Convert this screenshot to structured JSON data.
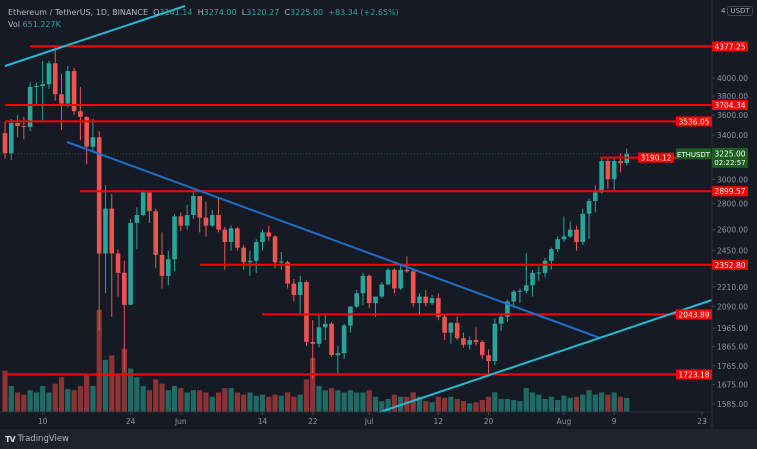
{
  "header": {
    "symbol_title": "Ethereum / TetherUS, 1D, BINANCE",
    "open_label": "O",
    "open": "3141.14",
    "high_label": "H",
    "high": "3274.00",
    "low_label": "L",
    "low": "3120.27",
    "close_label": "C",
    "close": "3225.00",
    "change": "+83.34 (+2.65%)",
    "volume_label": "Vol",
    "volume": "651.227K"
  },
  "price_axis": {
    "currency": "USDT",
    "top_label": "4",
    "scale": "log",
    "ticks": [
      "4000.00",
      "3800.00",
      "3600.00",
      "3400.00",
      "3000.00",
      "2800.00",
      "2600.00",
      "2450.00",
      "2210.00",
      "2090.00",
      "1965.00",
      "1865.00",
      "1765.00",
      "1675.00",
      "1585.00"
    ]
  },
  "time_axis": {
    "ticks": [
      {
        "label": "10",
        "date": "2021-05-10"
      },
      {
        "label": "24",
        "date": "2021-05-24"
      },
      {
        "label": "Jun",
        "date": "2021-06-01"
      },
      {
        "label": "14",
        "date": "2021-06-14"
      },
      {
        "label": "22",
        "date": "2021-06-22"
      },
      {
        "label": "Jul",
        "date": "2021-07-01"
      },
      {
        "label": "12",
        "date": "2021-07-12"
      },
      {
        "label": "20",
        "date": "2021-07-20"
      },
      {
        "label": "Aug",
        "date": "2021-08-01"
      },
      {
        "label": "9",
        "date": "2021-08-09"
      },
      {
        "label": "23",
        "date": "2021-08-23"
      }
    ]
  },
  "levels": [
    {
      "label": "4377.25",
      "price": 4377.25
    },
    {
      "label": "3704.34",
      "price": 3704.34
    },
    {
      "label": "3536.05",
      "price": 3536.05
    },
    {
      "label": "3190.12",
      "price": 3190.12
    },
    {
      "label": "2899.57",
      "price": 2899.57
    },
    {
      "label": "2352.80",
      "price": 2352.8
    },
    {
      "label": "2043.89",
      "price": 2043.89
    },
    {
      "label": "1723.18",
      "price": 1723.18
    }
  ],
  "last_price": {
    "symbol": "ETHUSDT",
    "price": "3225.00",
    "countdown": "02:22:57",
    "value": 3225.0
  },
  "colors": {
    "background": "#161a25",
    "up": "#26a69a",
    "down": "#ef5350",
    "volume_up": "#1e6b66",
    "volume_down": "#8a3436",
    "level": "#ff0000",
    "trend_up": "#1fbcd2",
    "trend_down": "#1e6fc8",
    "last_price": "#1b5e20"
  },
  "branding": {
    "name": "TradingView"
  },
  "chart_data": {
    "type": "candlestick",
    "yscale": "log",
    "columns": [
      "date",
      "open",
      "high",
      "low",
      "close",
      "volume_k"
    ],
    "candles": [
      [
        "2021-05-04",
        3420,
        3530,
        3180,
        3230,
        1900
      ],
      [
        "2021-05-05",
        3230,
        3560,
        3170,
        3520,
        1200
      ],
      [
        "2021-05-06",
        3520,
        3600,
        3380,
        3490,
        900
      ],
      [
        "2021-05-07",
        3490,
        3580,
        3360,
        3480,
        800
      ],
      [
        "2021-05-08",
        3480,
        3950,
        3440,
        3900,
        1000
      ],
      [
        "2021-05-09",
        3900,
        3950,
        3700,
        3910,
        900
      ],
      [
        "2021-05-10",
        3910,
        4200,
        3530,
        3930,
        1200
      ],
      [
        "2021-05-11",
        3930,
        4200,
        3880,
        4170,
        900
      ],
      [
        "2021-05-12",
        4170,
        4370,
        3750,
        3820,
        1300
      ],
      [
        "2021-05-13",
        3820,
        4050,
        3450,
        3720,
        1600
      ],
      [
        "2021-05-14",
        3720,
        4140,
        3680,
        4080,
        1050
      ],
      [
        "2021-05-15",
        4080,
        4120,
        3600,
        3640,
        1000
      ],
      [
        "2021-05-16",
        3640,
        3900,
        3350,
        3580,
        1200
      ],
      [
        "2021-05-17",
        3580,
        3590,
        3130,
        3290,
        1700
      ],
      [
        "2021-05-18",
        3290,
        3560,
        3250,
        3380,
        1200
      ],
      [
        "2021-05-19",
        3380,
        3440,
        1950,
        2430,
        4700
      ],
      [
        "2021-05-20",
        2430,
        2950,
        2170,
        2760,
        2400
      ],
      [
        "2021-05-21",
        2760,
        2880,
        2030,
        2430,
        2600
      ],
      [
        "2021-05-22",
        2430,
        2460,
        2150,
        2300,
        1700
      ],
      [
        "2021-05-23",
        2300,
        2380,
        1740,
        2100,
        2900
      ],
      [
        "2021-05-24",
        2100,
        2680,
        2100,
        2650,
        2000
      ],
      [
        "2021-05-25",
        2650,
        2770,
        2460,
        2710,
        1600
      ],
      [
        "2021-05-26",
        2710,
        2910,
        2700,
        2890,
        1200
      ],
      [
        "2021-05-27",
        2890,
        2890,
        2650,
        2740,
        1000
      ],
      [
        "2021-05-28",
        2740,
        2760,
        2330,
        2420,
        1500
      ],
      [
        "2021-05-29",
        2420,
        2580,
        2200,
        2280,
        1300
      ],
      [
        "2021-05-30",
        2280,
        2450,
        2220,
        2390,
        1000
      ],
      [
        "2021-05-31",
        2390,
        2720,
        2310,
        2700,
        1200
      ],
      [
        "2021-06-01",
        2700,
        2730,
        2590,
        2630,
        1100
      ],
      [
        "2021-06-02",
        2630,
        2790,
        2600,
        2710,
        900
      ],
      [
        "2021-06-03",
        2710,
        2890,
        2680,
        2860,
        1000
      ],
      [
        "2021-06-04",
        2860,
        2860,
        2580,
        2690,
        1000
      ],
      [
        "2021-06-05",
        2690,
        2815,
        2550,
        2630,
        900
      ],
      [
        "2021-06-06",
        2630,
        2750,
        2620,
        2710,
        700
      ],
      [
        "2021-06-07",
        2710,
        2840,
        2580,
        2600,
        900
      ],
      [
        "2021-06-08",
        2600,
        2620,
        2320,
        2510,
        1100
      ],
      [
        "2021-06-09",
        2510,
        2630,
        2450,
        2610,
        1100
      ],
      [
        "2021-06-10",
        2610,
        2620,
        2450,
        2470,
        900
      ],
      [
        "2021-06-11",
        2470,
        2490,
        2320,
        2370,
        800
      ],
      [
        "2021-06-12",
        2370,
        2450,
        2280,
        2380,
        900
      ],
      [
        "2021-06-13",
        2380,
        2530,
        2300,
        2510,
        750
      ],
      [
        "2021-06-14",
        2510,
        2600,
        2450,
        2580,
        800
      ],
      [
        "2021-06-15",
        2580,
        2630,
        2520,
        2550,
        700
      ],
      [
        "2021-06-16",
        2550,
        2560,
        2330,
        2370,
        800
      ],
      [
        "2021-06-17",
        2370,
        2440,
        2320,
        2375,
        750
      ],
      [
        "2021-06-18",
        2370,
        2380,
        2200,
        2230,
        900
      ],
      [
        "2021-06-19",
        2230,
        2260,
        2120,
        2160,
        700
      ],
      [
        "2021-06-20",
        2160,
        2280,
        2040,
        2240,
        800
      ],
      [
        "2021-06-21",
        2240,
        2250,
        1870,
        1890,
        1500
      ],
      [
        "2021-06-22",
        1890,
        2010,
        1700,
        1880,
        2500
      ],
      [
        "2021-06-23",
        1880,
        2040,
        1860,
        1970,
        1200
      ],
      [
        "2021-06-24",
        1970,
        2050,
        1900,
        1990,
        1000
      ],
      [
        "2021-06-25",
        1990,
        2000,
        1810,
        1820,
        1100
      ],
      [
        "2021-06-26",
        1820,
        1870,
        1720,
        1830,
        1000
      ],
      [
        "2021-06-27",
        1830,
        1990,
        1800,
        1980,
        900
      ],
      [
        "2021-06-28",
        1980,
        2090,
        1940,
        2090,
        1000
      ],
      [
        "2021-06-29",
        2090,
        2190,
        2080,
        2170,
        900
      ],
      [
        "2021-06-30",
        2170,
        2300,
        2100,
        2280,
        900
      ],
      [
        "2021-07-01",
        2280,
        2290,
        2080,
        2110,
        1000
      ],
      [
        "2021-07-02",
        2110,
        2150,
        2030,
        2150,
        700
      ],
      [
        "2021-07-03",
        2150,
        2240,
        2140,
        2225,
        500
      ],
      [
        "2021-07-04",
        2225,
        2330,
        2220,
        2320,
        600
      ],
      [
        "2021-07-05",
        2320,
        2330,
        2170,
        2200,
        800
      ],
      [
        "2021-07-06",
        2200,
        2350,
        2190,
        2320,
        700
      ],
      [
        "2021-07-07",
        2320,
        2410,
        2300,
        2310,
        700
      ],
      [
        "2021-07-08",
        2310,
        2330,
        2090,
        2110,
        900
      ],
      [
        "2021-07-09",
        2110,
        2170,
        2040,
        2150,
        700
      ],
      [
        "2021-07-10",
        2150,
        2190,
        2090,
        2110,
        500
      ],
      [
        "2021-07-11",
        2110,
        2160,
        2100,
        2140,
        450
      ],
      [
        "2021-07-12",
        2140,
        2170,
        2010,
        2030,
        700
      ],
      [
        "2021-07-13",
        2030,
        2040,
        1900,
        1940,
        650
      ],
      [
        "2021-07-14",
        1940,
        2000,
        1880,
        1995,
        700
      ],
      [
        "2021-07-15",
        1995,
        2030,
        1900,
        1910,
        600
      ],
      [
        "2021-07-16",
        1910,
        1940,
        1860,
        1875,
        500
      ],
      [
        "2021-07-17",
        1875,
        1920,
        1850,
        1900,
        400
      ],
      [
        "2021-07-18",
        1900,
        1970,
        1870,
        1890,
        450
      ],
      [
        "2021-07-19",
        1890,
        1900,
        1800,
        1820,
        550
      ],
      [
        "2021-07-20",
        1820,
        1850,
        1720,
        1790,
        700
      ],
      [
        "2021-07-21",
        1790,
        2020,
        1770,
        1990,
        900
      ],
      [
        "2021-07-22",
        1990,
        2050,
        1950,
        2030,
        600
      ],
      [
        "2021-07-23",
        2030,
        2130,
        2000,
        2120,
        600
      ],
      [
        "2021-07-24",
        2120,
        2190,
        2090,
        2180,
        550
      ],
      [
        "2021-07-25",
        2180,
        2200,
        2110,
        2185,
        500
      ],
      [
        "2021-07-26",
        2185,
        2430,
        2170,
        2220,
        1100
      ],
      [
        "2021-07-27",
        2220,
        2320,
        2150,
        2300,
        900
      ],
      [
        "2021-07-28",
        2300,
        2340,
        2250,
        2302,
        800
      ],
      [
        "2021-07-29",
        2300,
        2400,
        2270,
        2380,
        600
      ],
      [
        "2021-07-30",
        2380,
        2470,
        2320,
        2460,
        700
      ],
      [
        "2021-07-31",
        2460,
        2550,
        2440,
        2530,
        550
      ],
      [
        "2021-08-01",
        2530,
        2700,
        2510,
        2550,
        750
      ],
      [
        "2021-08-02",
        2550,
        2660,
        2540,
        2600,
        650
      ],
      [
        "2021-08-03",
        2600,
        2630,
        2450,
        2510,
        700
      ],
      [
        "2021-08-04",
        2510,
        2760,
        2490,
        2720,
        800
      ],
      [
        "2021-08-05",
        2720,
        2840,
        2530,
        2820,
        1000
      ],
      [
        "2021-08-06",
        2820,
        2950,
        2730,
        2890,
        800
      ],
      [
        "2021-08-07",
        2890,
        3180,
        2880,
        3160,
        900
      ],
      [
        "2021-08-08",
        3160,
        3180,
        2920,
        3000,
        800
      ],
      [
        "2021-08-09",
        3000,
        3180,
        2900,
        3160,
        900
      ],
      [
        "2021-08-10",
        3160,
        3230,
        3060,
        3140,
        700
      ],
      [
        "2021-08-11",
        3141.14,
        3274.0,
        3120.27,
        3225.0,
        651.227
      ]
    ]
  }
}
